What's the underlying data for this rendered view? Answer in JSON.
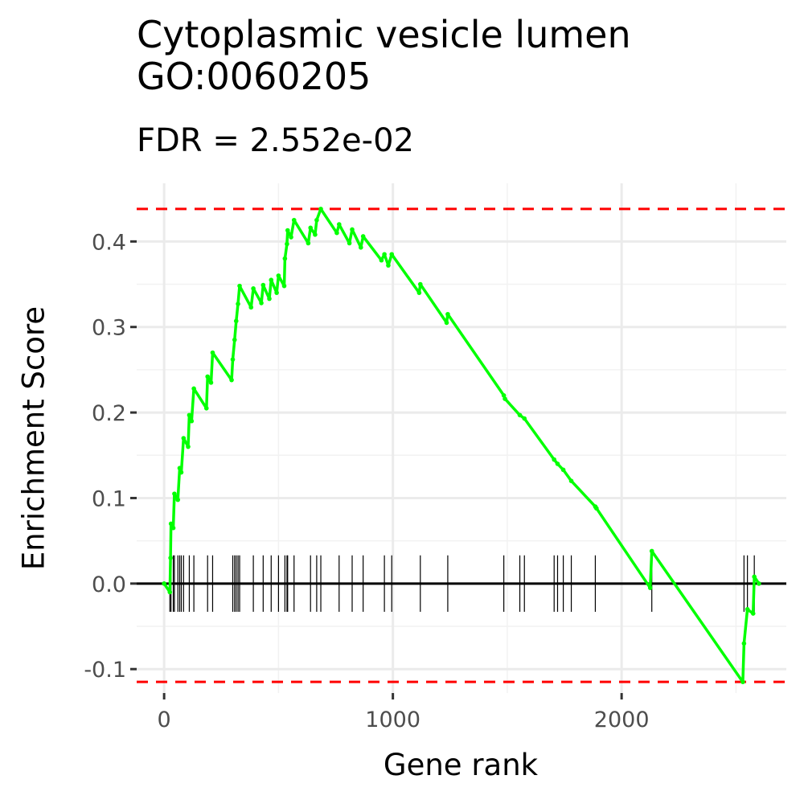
{
  "chart_data": {
    "type": "line",
    "title_line1": "Cytoplasmic vesicle lumen",
    "title_line2": "GO:0060205",
    "subtitle": "FDR = 2.552e-02",
    "xlabel": "Gene rank",
    "ylabel": "Enrichment Score",
    "xlim": [
      -120,
      2720
    ],
    "ylim": [
      -0.128,
      0.468
    ],
    "x_ticks": [
      0,
      1000,
      2000
    ],
    "x_tick_labels": [
      "0",
      "1000",
      "2000"
    ],
    "y_ticks": [
      -0.1,
      0,
      0.1,
      0.2,
      0.3,
      0.4
    ],
    "y_tick_labels": [
      "-0.1",
      "0.0",
      "0.1",
      "0.2",
      "0.3",
      "0.4"
    ],
    "max_es": 0.438,
    "min_es": -0.115,
    "line_color": "#00ff00",
    "threshold_color": "#ff0000",
    "series": [
      {
        "values": [
          [
            0,
            0.0
          ],
          [
            25,
            -0.01
          ],
          [
            28,
            0.03
          ],
          [
            30,
            0.07
          ],
          [
            40,
            0.065
          ],
          [
            45,
            0.105
          ],
          [
            60,
            0.098
          ],
          [
            68,
            0.135
          ],
          [
            75,
            0.13
          ],
          [
            85,
            0.17
          ],
          [
            105,
            0.16
          ],
          [
            110,
            0.197
          ],
          [
            120,
            0.19
          ],
          [
            130,
            0.228
          ],
          [
            185,
            0.205
          ],
          [
            190,
            0.242
          ],
          [
            205,
            0.235
          ],
          [
            212,
            0.27
          ],
          [
            295,
            0.238
          ],
          [
            300,
            0.262
          ],
          [
            308,
            0.285
          ],
          [
            315,
            0.307
          ],
          [
            323,
            0.327
          ],
          [
            330,
            0.348
          ],
          [
            380,
            0.323
          ],
          [
            390,
            0.345
          ],
          [
            425,
            0.328
          ],
          [
            433,
            0.349
          ],
          [
            460,
            0.333
          ],
          [
            468,
            0.355
          ],
          [
            492,
            0.34
          ],
          [
            500,
            0.36
          ],
          [
            525,
            0.348
          ],
          [
            528,
            0.38
          ],
          [
            537,
            0.397
          ],
          [
            540,
            0.413
          ],
          [
            555,
            0.405
          ],
          [
            568,
            0.425
          ],
          [
            630,
            0.398
          ],
          [
            640,
            0.416
          ],
          [
            660,
            0.408
          ],
          [
            667,
            0.425
          ],
          [
            685,
            0.438
          ],
          [
            755,
            0.41
          ],
          [
            765,
            0.42
          ],
          [
            810,
            0.398
          ],
          [
            822,
            0.414
          ],
          [
            860,
            0.393
          ],
          [
            870,
            0.406
          ],
          [
            950,
            0.378
          ],
          [
            963,
            0.385
          ],
          [
            980,
            0.372
          ],
          [
            995,
            0.385
          ],
          [
            1115,
            0.34
          ],
          [
            1120,
            0.35
          ],
          [
            1235,
            0.305
          ],
          [
            1240,
            0.315
          ],
          [
            1485,
            0.22
          ],
          [
            1490,
            0.216
          ],
          [
            1555,
            0.197
          ],
          [
            1575,
            0.193
          ],
          [
            1705,
            0.145
          ],
          [
            1720,
            0.14
          ],
          [
            1745,
            0.133
          ],
          [
            1780,
            0.12
          ],
          [
            1885,
            0.09
          ],
          [
            1890,
            0.088
          ],
          [
            2125,
            -0.005
          ],
          [
            2132,
            0.038
          ],
          [
            2530,
            -0.115
          ],
          [
            2535,
            -0.07
          ],
          [
            2550,
            -0.03
          ],
          [
            2575,
            -0.035
          ],
          [
            2580,
            0.008
          ],
          [
            2600,
            0.0
          ]
        ]
      }
    ],
    "hit_ranks": [
      25,
      30,
      40,
      45,
      60,
      68,
      75,
      85,
      110,
      130,
      190,
      212,
      300,
      308,
      315,
      323,
      330,
      390,
      433,
      468,
      500,
      528,
      537,
      540,
      568,
      640,
      667,
      685,
      765,
      822,
      870,
      963,
      995,
      1120,
      1240,
      1485,
      1555,
      1575,
      1705,
      1720,
      1745,
      1780,
      1885,
      2132,
      2535,
      2550,
      2580
    ]
  }
}
